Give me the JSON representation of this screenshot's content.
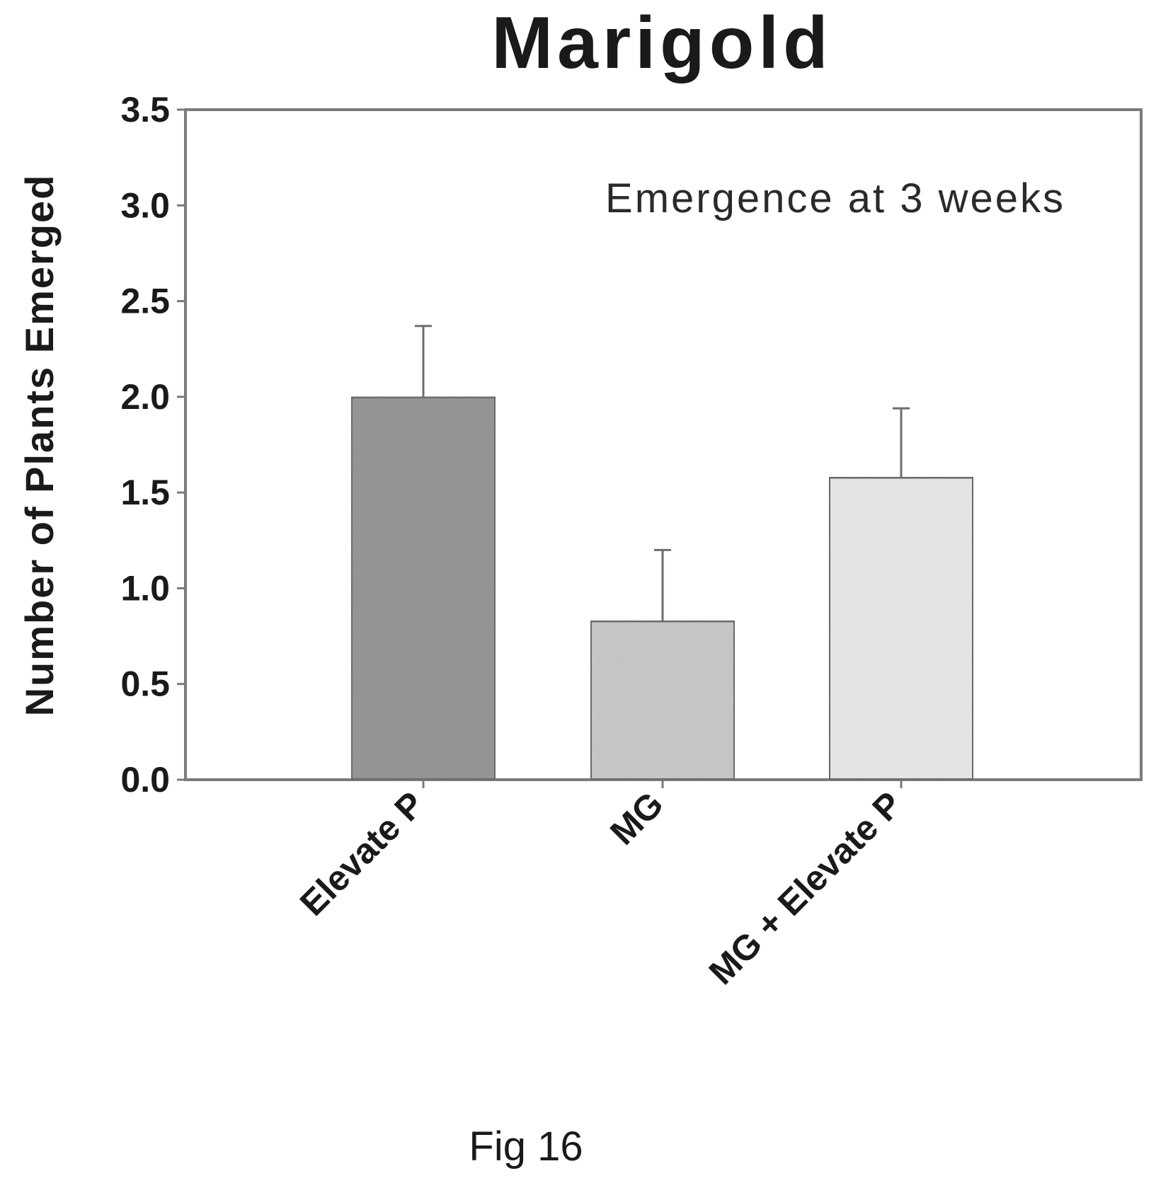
{
  "figure_caption": "Fig 16",
  "chart_data": {
    "type": "bar",
    "title": "Marigold",
    "annotation": "Emergence at 3 weeks",
    "xlabel": "",
    "ylabel": "Number of Plants Emerged",
    "ylim": [
      0,
      3.5
    ],
    "yticks": [
      "0.0",
      "0.5",
      "1.0",
      "1.5",
      "2.0",
      "2.5",
      "3.0",
      "3.5"
    ],
    "categories": [
      "Elevate P",
      "MG",
      "MG + Elevate P"
    ],
    "values": [
      2.0,
      0.83,
      1.58
    ],
    "error_upper": [
      0.37,
      0.37,
      0.36
    ],
    "bar_colors": [
      "#9a9a9a",
      "#cdcdcd",
      "#ededed"
    ],
    "grid": false,
    "legend": "none"
  }
}
